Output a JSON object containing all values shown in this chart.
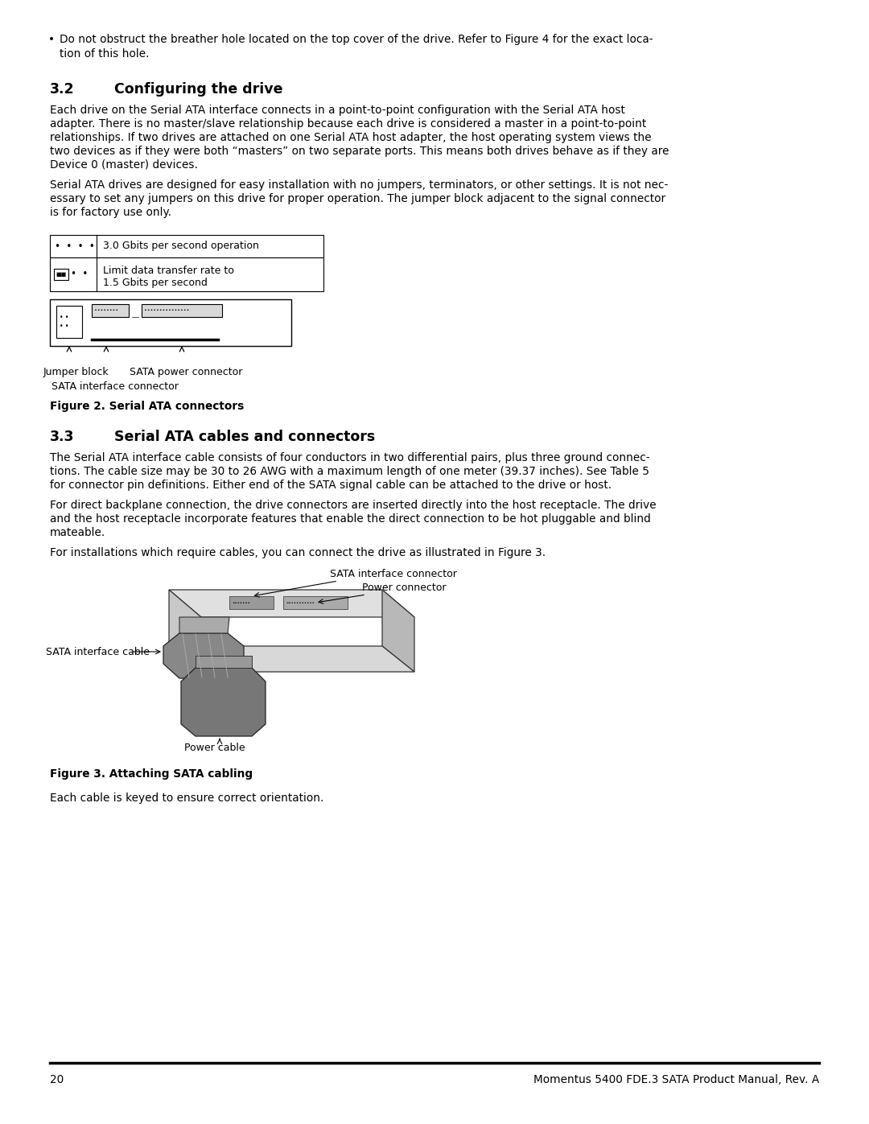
{
  "background_color": "#ffffff",
  "text_color": "#000000",
  "body_fontsize": 9.8,
  "heading_fontsize": 12.5,
  "caption_fontsize": 9.8,
  "small_fontsize": 9.0,
  "bullet_text_line1": "Do not obstruct the breather hole located on the top cover of the drive. Refer to Figure 4 for the exact loca-",
  "bullet_text_line2": "tion of this hole.",
  "sec32_title_num": "3.2",
  "sec32_title_text": "Configuring the drive",
  "sec32_p1_lines": [
    "Each drive on the Serial ATA interface connects in a point-to-point configuration with the Serial ATA host",
    "adapter. There is no master/slave relationship because each drive is considered a master in a point-to-point",
    "relationships. If two drives are attached on one Serial ATA host adapter, the host operating system views the",
    "two devices as if they were both “masters” on two separate ports. This means both drives behave as if they are",
    "Device 0 (master) devices."
  ],
  "sec32_p2_lines": [
    "Serial ATA drives are designed for easy installation with no jumpers, terminators, or other settings. It is not nec-",
    "essary to set any jumpers on this drive for proper operation. The jumper block adjacent to the signal connector",
    "is for factory use only."
  ],
  "tbl_row1_label": "3.0 Gbits per second operation",
  "tbl_row2_line1": "Limit data transfer rate to",
  "tbl_row2_line2": "1.5 Gbits per second",
  "lbl_jumper_block": "Jumper block",
  "lbl_sata_iface_conn": "SATA interface connector",
  "lbl_sata_power_conn": "SATA power connector",
  "fig2_caption": "Figure 2. Serial ATA connectors",
  "sec33_title_num": "3.3",
  "sec33_title_text": "Serial ATA cables and connectors",
  "sec33_p1_lines": [
    "The Serial ATA interface cable consists of four conductors in two differential pairs, plus three ground connec-",
    "tions. The cable size may be 30 to 26 AWG with a maximum length of one meter (39.37 inches). See Table 5",
    "for connector pin definitions. Either end of the SATA signal cable can be attached to the drive or host."
  ],
  "sec33_p2_lines": [
    "For direct backplane connection, the drive connectors are inserted directly into the host receptacle. The drive",
    "and the host receptacle incorporate features that enable the direct connection to be hot pluggable and blind",
    "mateable."
  ],
  "sec33_p3": "For installations which require cables, you can connect the drive as illustrated in Figure 3.",
  "fig3_lbl_sata_iface_conn": "SATA interface connector",
  "fig3_lbl_power_conn": "Power connector",
  "fig3_lbl_sata_iface_cable": "SATA interface cable",
  "fig3_lbl_power_cable": "Power cable",
  "fig3_caption": "Figure 3. Attaching SATA cabling",
  "last_line": "Each cable is keyed to ensure correct orientation.",
  "footer_num": "20",
  "footer_title": "Momentus 5400 FDE.3 SATA Product Manual, Rev. A"
}
